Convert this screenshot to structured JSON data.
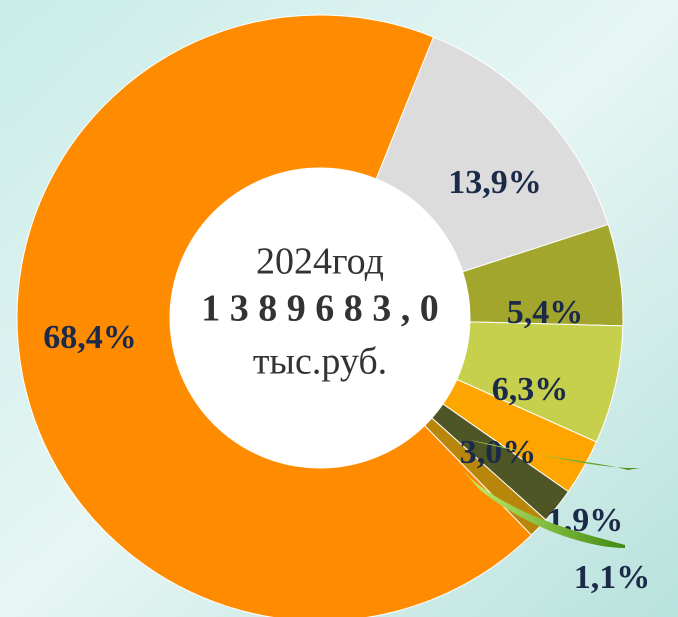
{
  "chart_data": {
    "type": "donut",
    "center_text": [
      "2024год",
      "1  3 8 9 6 8 3 , 0",
      "тыс.руб."
    ],
    "values": [
      68.4,
      13.9,
      5.4,
      6.3,
      3.0,
      1.9,
      1.1
    ],
    "value_labels": [
      "68,4%",
      "13,9%",
      "5,4%",
      "6,3%",
      "3,0%",
      "1,9%",
      "1,1%"
    ],
    "colors": [
      "#ff8c00",
      "#dcdcdc",
      "#a3a62c",
      "#c6d04c",
      "#ffa500",
      "#4f5626",
      "#b8860b"
    ]
  }
}
